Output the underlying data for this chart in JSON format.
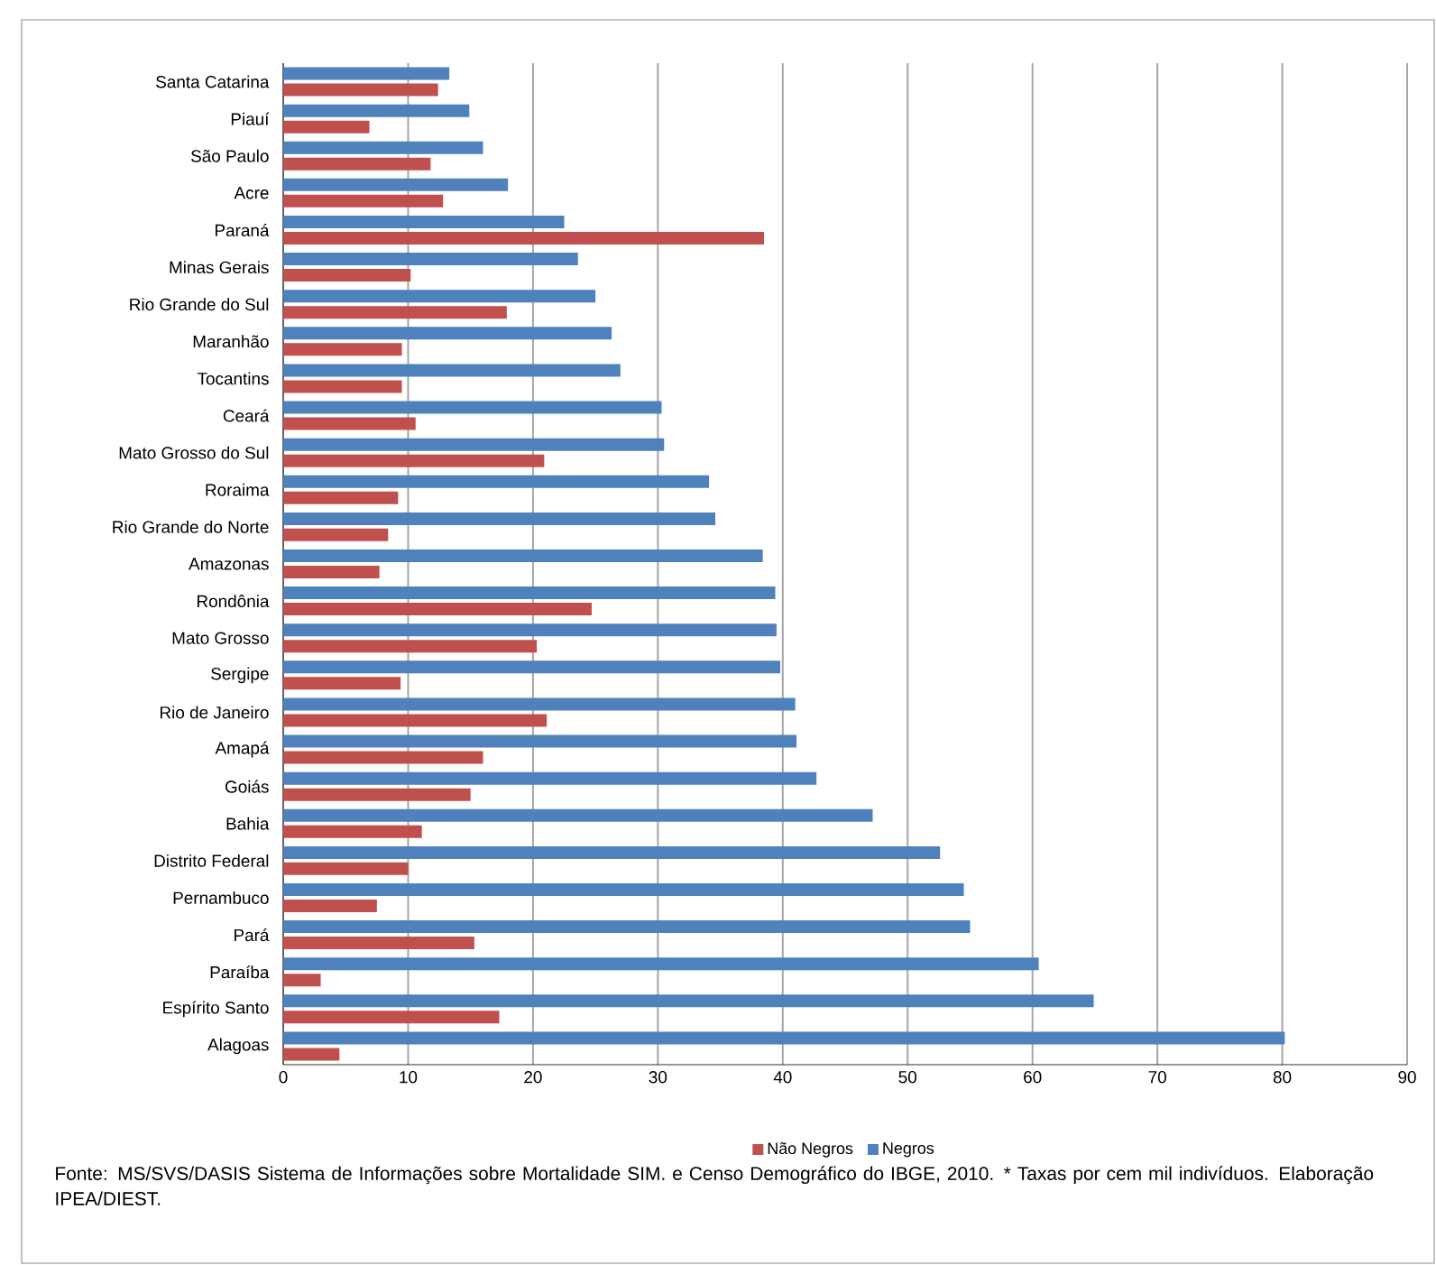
{
  "chart_data": {
    "type": "bar",
    "orientation": "horizontal",
    "categories": [
      "Santa Catarina",
      "Piauí",
      "São Paulo",
      "Acre",
      "Paraná",
      "Minas Gerais",
      "Rio Grande do Sul",
      "Maranhão",
      "Tocantins",
      "Ceará",
      "Mato Grosso do Sul",
      "Roraima",
      "Rio Grande do Norte",
      "Amazonas",
      "Rondônia",
      "Mato Grosso",
      "Sergipe",
      "Rio de Janeiro",
      "Amapá",
      "Goiás",
      "Bahia",
      "Distrito Federal",
      "Pernambuco",
      "Pará",
      "Paraíba",
      "Espírito Santo",
      "Alagoas"
    ],
    "series": [
      {
        "name": "Não Negros",
        "color": "#c0504d",
        "values": [
          12.4,
          6.9,
          11.8,
          12.8,
          38.5,
          10.2,
          17.9,
          9.5,
          9.5,
          10.6,
          20.9,
          9.2,
          8.4,
          7.7,
          24.7,
          20.3,
          9.4,
          21.1,
          16.0,
          15.0,
          11.1,
          10.0,
          7.5,
          15.3,
          3.0,
          17.3,
          4.5
        ]
      },
      {
        "name": "Negros",
        "color": "#4f81bd",
        "values": [
          13.3,
          14.9,
          16.0,
          18.0,
          22.5,
          23.6,
          25.0,
          26.3,
          27.0,
          30.3,
          30.5,
          34.1,
          34.6,
          38.4,
          39.4,
          39.5,
          39.8,
          41.0,
          41.1,
          42.7,
          47.2,
          52.6,
          54.5,
          55.0,
          60.5,
          64.9,
          80.2
        ]
      }
    ],
    "xlim": [
      0,
      90
    ],
    "xticks": [
      0,
      10,
      20,
      30,
      40,
      50,
      60,
      70,
      80,
      90
    ],
    "grid": "x",
    "legend": "bottom",
    "annotations": [
      "Fonte: MS/SVS/DASIS Sistema de Informações sobre Mortalidade SIM. e Censo Demográfico do IBGE, 2010. * Taxas por cem mil indivíduos. Elaboração IPEA/DIEST."
    ]
  }
}
